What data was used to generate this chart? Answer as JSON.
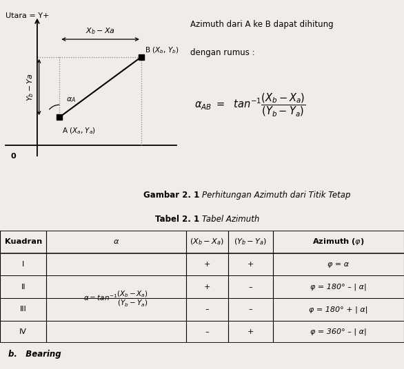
{
  "bg_color": "#f0ede8",
  "text_color": "#000000",
  "right_text_line1": "Azimuth dari A ke B dapat dihitung",
  "right_text_line2": "dengan rumus :",
  "fig_caption_bold": "Gambar 2. 1",
  "fig_caption_italic": "Perhitungan Azimuth dari Titik Tetap",
  "tbl_caption_bold": "Tabel 2. 1",
  "tbl_caption_italic": "Tabel Azimuth",
  "bottom_text": "b.   Bearing",
  "quadrants": [
    "I",
    "II",
    "III",
    "IV"
  ],
  "xb_xa": [
    "+",
    "+",
    "–",
    "–"
  ],
  "yb_ya": [
    "+",
    "–",
    "–",
    "+"
  ],
  "azimuths": [
    "φ = α",
    "φ = 180° – | α|",
    "φ = 180° + | α|",
    "φ = 360° – | α|"
  ]
}
